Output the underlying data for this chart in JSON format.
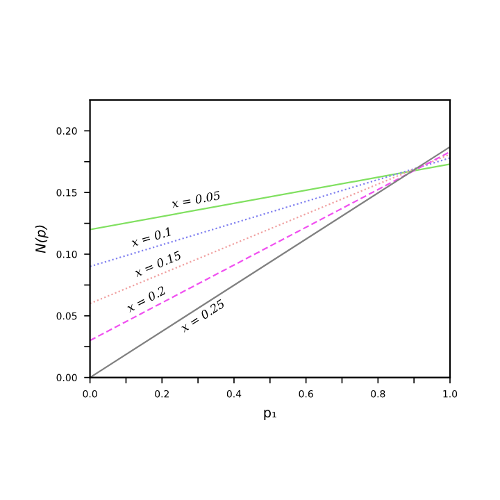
{
  "chart_data": {
    "type": "line",
    "xlabel": "p₁",
    "ylabel": "N(p)",
    "x": [
      0,
      1
    ],
    "series": [
      {
        "color": "#80e060",
        "values": [
          0.12,
          0.173
        ],
        "line_style": "solid"
      },
      {
        "color": "#8080f0",
        "values": [
          0.09,
          0.178
        ],
        "line_style": "dotted"
      },
      {
        "color": "#f0a0a0",
        "values": [
          0.06,
          0.181
        ],
        "line_style": "dotted"
      },
      {
        "color": "#f050f0",
        "values": [
          0.03,
          0.183
        ],
        "line_style": "dashed"
      },
      {
        "color": "#808080",
        "values": [
          0.0,
          0.187
        ],
        "line_style": "solid"
      }
    ],
    "annotations": [
      {
        "text": "x = 0.05",
        "x": 0.3,
        "y": 0.1359
      },
      {
        "text": "x = 0.1",
        "x": 0.18,
        "y": 0.1058
      },
      {
        "text": "x = 0.15",
        "x": 0.2,
        "y": 0.0842
      },
      {
        "text": "x = 0.2",
        "x": 0.17,
        "y": 0.056
      },
      {
        "text": "x = 0.25",
        "x": 0.3,
        "y": 0.0561
      }
    ],
    "xlim": [
      0,
      1.0
    ],
    "ylim": [
      0,
      0.225
    ],
    "xticks": [
      {
        "value": 0,
        "label": "0.0"
      },
      {
        "value": 0.1,
        "label": null
      },
      0.2,
      {
        "value": 0.3,
        "label": null
      },
      0.4,
      {
        "value": 0.5,
        "label": null
      },
      0.6,
      {
        "value": 0.7,
        "label": null
      },
      0.8,
      {
        "value": 0.9,
        "label": null
      },
      {
        "value": 1,
        "label": "1.0"
      }
    ],
    "yticks": [
      {
        "value": 0,
        "label": "0.00"
      },
      {
        "value": 0.025,
        "label": null
      },
      0.05,
      {
        "value": 0.075,
        "label": null
      },
      {
        "value": 0.1,
        "label": "0.10"
      },
      {
        "value": 0.125,
        "label": null
      },
      0.15,
      {
        "value": 0.175,
        "label": null
      },
      {
        "value": 0.2,
        "label": "0.20"
      }
    ],
    "grid": false,
    "legend": false,
    "marker": "none"
  }
}
